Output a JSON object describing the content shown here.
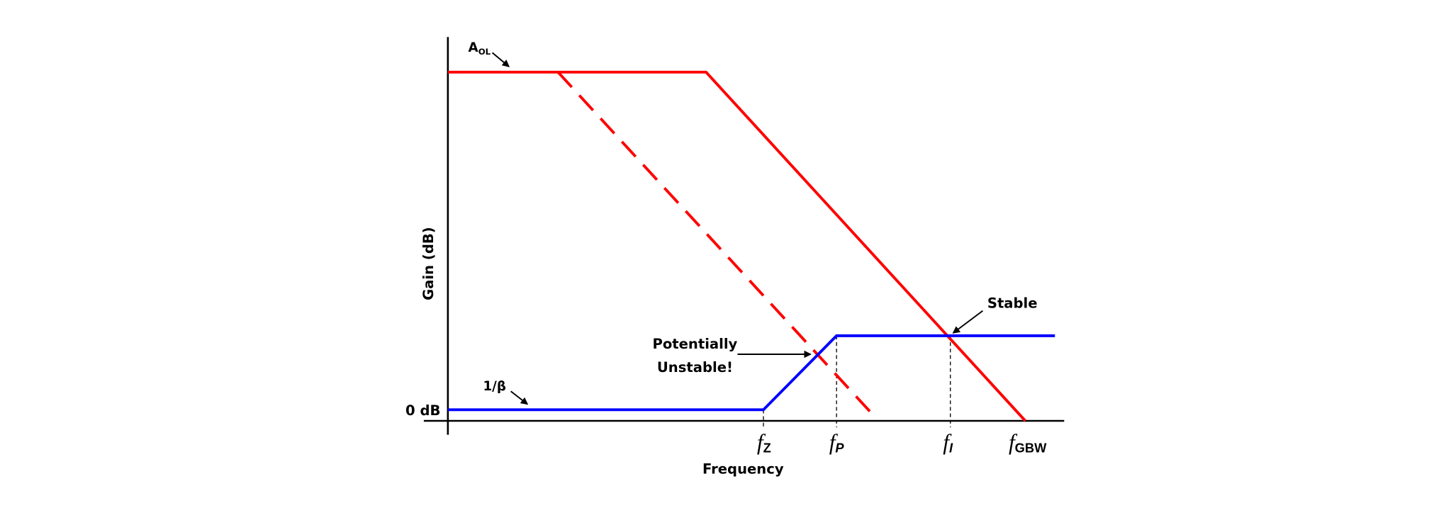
{
  "labels": {
    "aol": {
      "main": "A",
      "sub": "OL"
    },
    "inv_beta": "1/β",
    "zero_db": "0 dB",
    "y_axis": "Gain (dB)",
    "x_axis": "Frequency",
    "unstable": [
      "Potentially",
      "Unstable!"
    ],
    "stable": "Stable"
  },
  "frequencies": [
    {
      "main": "f",
      "sub": "Z"
    },
    {
      "main": "f",
      "sub": "P"
    },
    {
      "main": "f",
      "sub": "I"
    },
    {
      "main": "f",
      "sub": "GBW"
    }
  ]
}
